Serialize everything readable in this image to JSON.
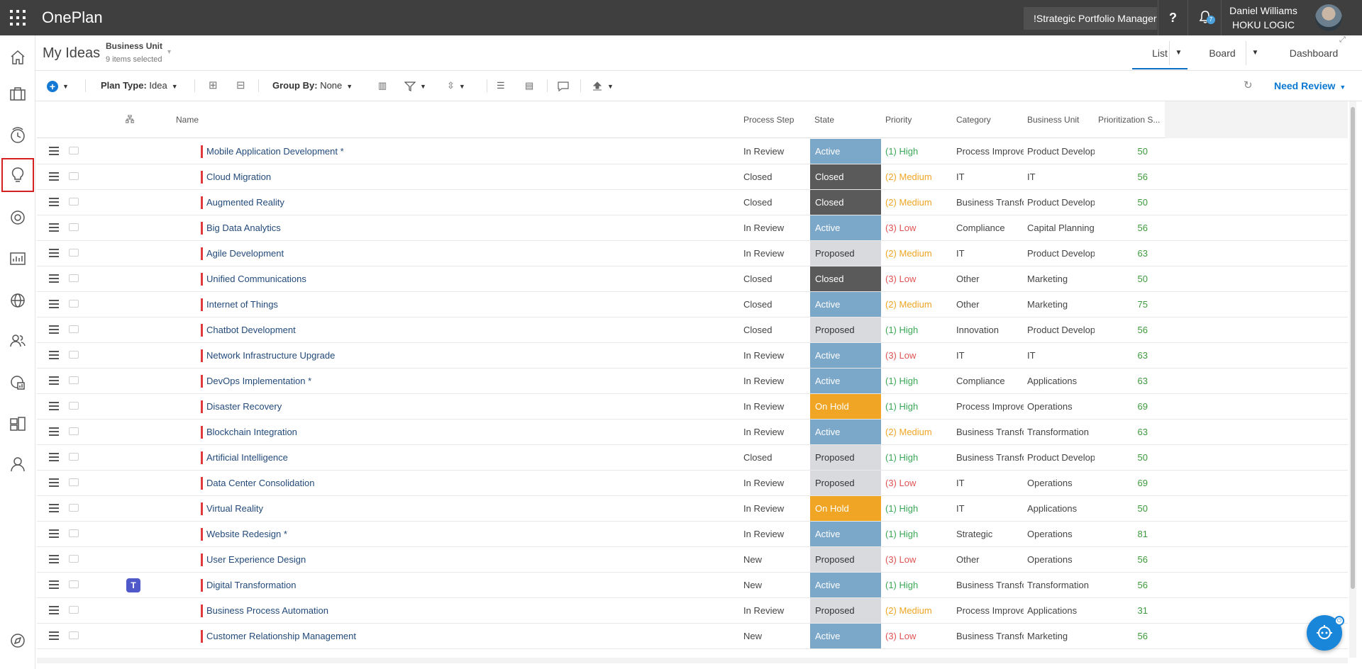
{
  "topbar": {
    "app_title": "OnePlan",
    "portfolio": "!Strategic Portfolio Manager",
    "help_label": "?",
    "notif_count": "7",
    "user_name": "Daniel Williams",
    "user_org": "HOKU LOGIC"
  },
  "leftnav": {
    "items": [
      {
        "icon": "home-icon"
      },
      {
        "icon": "briefcase-icon"
      },
      {
        "icon": "timesheet-icon"
      },
      {
        "icon": "lightbulb-icon",
        "selected": true
      },
      {
        "icon": "target-icon"
      },
      {
        "icon": "report-icon"
      },
      {
        "icon": "globe-icon"
      },
      {
        "icon": "people-icon"
      },
      {
        "icon": "resource-report-icon"
      },
      {
        "icon": "tasks-icon"
      },
      {
        "icon": "person-icon"
      },
      {
        "icon": "compass-icon"
      }
    ]
  },
  "header": {
    "title": "My Ideas",
    "filter_label": "Business Unit",
    "filter_sub": "9 items selected",
    "tabs": {
      "list": "List",
      "board": "Board",
      "dashboard": "Dashboard"
    }
  },
  "toolbar": {
    "plan_type_label": "Plan Type:",
    "plan_type_value": "Idea",
    "group_by_label": "Group By:",
    "group_by_value": "None",
    "view_filter": "Need Review"
  },
  "columns": {
    "name": "Name",
    "process": "Process Step",
    "state": "State",
    "priority": "Priority",
    "category": "Category",
    "bunit": "Business Unit",
    "score": "Prioritization S..."
  },
  "colors": {
    "state_active": "#7ba7c9",
    "state_closed": "#5a5a5a",
    "state_proposed": "#d9dade",
    "state_onhold": "#f0a524",
    "priority_high": "#3aa757",
    "priority_medium": "#f0a524",
    "priority_low": "#e05252",
    "accent": "#0a78d1"
  },
  "rows": [
    {
      "name": "Mobile Application Development *",
      "process": "In Review",
      "state": "Active",
      "priority": "(1) High",
      "category": "Process Improvement",
      "bunit": "Product Development",
      "score": "50"
    },
    {
      "name": "Cloud Migration",
      "process": "Closed",
      "state": "Closed",
      "priority": "(2) Medium",
      "category": "IT",
      "bunit": "IT",
      "score": "56"
    },
    {
      "name": "Augmented Reality",
      "process": "Closed",
      "state": "Closed",
      "priority": "(2) Medium",
      "category": "Business Transformation",
      "bunit": "Product Development",
      "score": "50"
    },
    {
      "name": "Big Data Analytics",
      "process": "In Review",
      "state": "Active",
      "priority": "(3) Low",
      "category": "Compliance",
      "bunit": "Capital Planning",
      "score": "56"
    },
    {
      "name": "Agile Development",
      "process": "In Review",
      "state": "Proposed",
      "priority": "(2) Medium",
      "category": "IT",
      "bunit": "Product Development",
      "score": "63"
    },
    {
      "name": "Unified Communications",
      "process": "Closed",
      "state": "Closed",
      "priority": "(3) Low",
      "category": "Other",
      "bunit": "Marketing",
      "score": "50"
    },
    {
      "name": "Internet of Things",
      "process": "Closed",
      "state": "Active",
      "priority": "(2) Medium",
      "category": "Other",
      "bunit": "Marketing",
      "score": "75"
    },
    {
      "name": "Chatbot Development",
      "process": "Closed",
      "state": "Proposed",
      "priority": "(1) High",
      "category": "Innovation",
      "bunit": "Product Development",
      "score": "56"
    },
    {
      "name": "Network Infrastructure Upgrade",
      "process": "In Review",
      "state": "Active",
      "priority": "(3) Low",
      "category": "IT",
      "bunit": "IT",
      "score": "63"
    },
    {
      "name": "DevOps Implementation *",
      "process": "In Review",
      "state": "Active",
      "priority": "(1) High",
      "category": "Compliance",
      "bunit": "Applications",
      "score": "63"
    },
    {
      "name": "Disaster Recovery",
      "process": "In Review",
      "state": "On Hold",
      "priority": "(1) High",
      "category": "Process Improvement",
      "bunit": "Operations",
      "score": "69"
    },
    {
      "name": "Blockchain Integration",
      "process": "In Review",
      "state": "Active",
      "priority": "(2) Medium",
      "category": "Business Transformation",
      "bunit": "Transformation",
      "score": "63"
    },
    {
      "name": "Artificial Intelligence",
      "process": "Closed",
      "state": "Proposed",
      "priority": "(1) High",
      "category": "Business Transformation",
      "bunit": "Product Development",
      "score": "50"
    },
    {
      "name": "Data Center Consolidation",
      "process": "In Review",
      "state": "Proposed",
      "priority": "(3) Low",
      "category": "IT",
      "bunit": "Operations",
      "score": "69"
    },
    {
      "name": "Virtual Reality",
      "process": "In Review",
      "state": "On Hold",
      "priority": "(1) High",
      "category": "IT",
      "bunit": "Applications",
      "score": "50"
    },
    {
      "name": "Website Redesign *",
      "process": "In Review",
      "state": "Active",
      "priority": "(1) High",
      "category": "Strategic",
      "bunit": "Operations",
      "score": "81"
    },
    {
      "name": "User Experience Design",
      "process": "New",
      "state": "Proposed",
      "priority": "(3) Low",
      "category": "Other",
      "bunit": "Operations",
      "score": "56"
    },
    {
      "name": "Digital Transformation",
      "process": "New",
      "state": "Active",
      "priority": "(1) High",
      "category": "Business Transformation",
      "bunit": "Transformation",
      "score": "56",
      "teams": true
    },
    {
      "name": "Business Process Automation",
      "process": "In Review",
      "state": "Proposed",
      "priority": "(2) Medium",
      "category": "Process Improvement",
      "bunit": "Applications",
      "score": "31"
    },
    {
      "name": "Customer Relationship Management",
      "process": "New",
      "state": "Active",
      "priority": "(3) Low",
      "category": "Business Transformation",
      "bunit": "Marketing",
      "score": "56"
    }
  ]
}
